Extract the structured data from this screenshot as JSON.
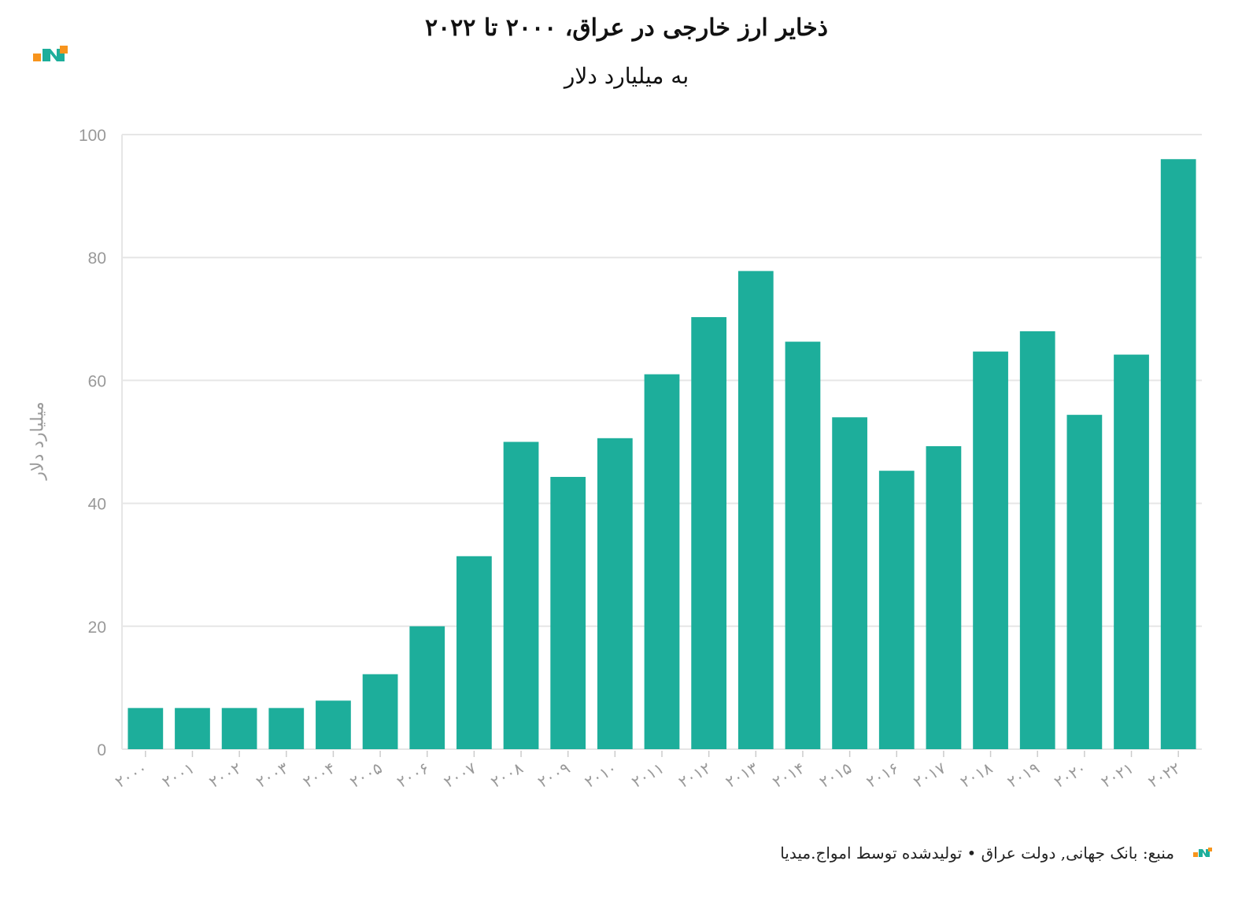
{
  "header": {
    "title": "ذخایر ارز خارجی در عراق، ۲۰۰۰ تا ۲۰۲۲",
    "subtitle": "به میلیارد دلار"
  },
  "footer": {
    "source": "منبع: بانک جهانی, دولت عراق • تولیدشده توسط امواج.میدیا"
  },
  "colors": {
    "bar": "#1dae9b",
    "grid": "#e6e6e6",
    "tick_text": "#999999",
    "logo_orange": "#f7941d",
    "logo_teal": "#1dae9b"
  },
  "icons": {
    "brand_logo": "amwaj-logo-icon"
  },
  "chart_data": {
    "type": "bar",
    "title": "ذخایر ارز خارجی در عراق، ۲۰۰۰ تا ۲۰۲۲",
    "subtitle": "به میلیارد دلار",
    "xlabel": "",
    "ylabel": "میلیارد دلار",
    "ylim": [
      0,
      100
    ],
    "yticks": [
      0,
      20,
      40,
      60,
      80,
      100
    ],
    "grid": true,
    "categories": [
      "۲۰۰۰",
      "۲۰۰۱",
      "۲۰۰۲",
      "۲۰۰۳",
      "۲۰۰۴",
      "۲۰۰۵",
      "۲۰۰۶",
      "۲۰۰۷",
      "۲۰۰۸",
      "۲۰۰۹",
      "۲۰۱۰",
      "۲۰۱۱",
      "۲۰۱۲",
      "۲۰۱۳",
      "۲۰۱۴",
      "۲۰۱۵",
      "۲۰۱۶",
      "۲۰۱۷",
      "۲۰۱۸",
      "۲۰۱۹",
      "۲۰۲۰",
      "۲۰۲۱",
      "۲۰۲۲"
    ],
    "values": [
      6.7,
      6.7,
      6.7,
      6.7,
      7.9,
      12.2,
      20.0,
      31.4,
      50.0,
      44.3,
      50.6,
      61.0,
      70.3,
      77.8,
      66.3,
      54.0,
      45.3,
      49.3,
      64.7,
      68.0,
      54.4,
      64.2,
      96.0
    ]
  }
}
